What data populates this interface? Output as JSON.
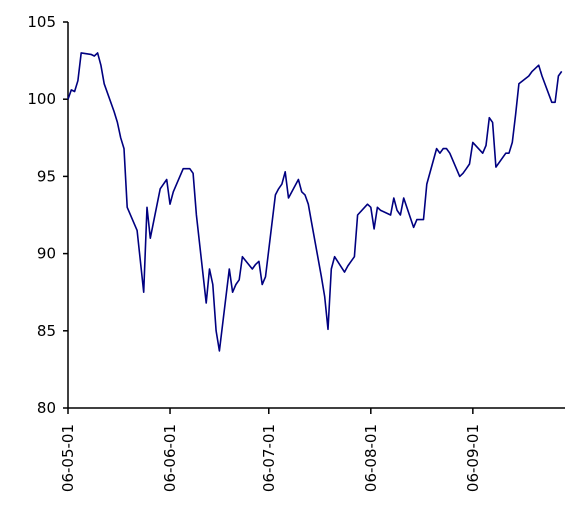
{
  "chart_data": {
    "type": "line",
    "title": "",
    "xlabel": "",
    "ylabel": "",
    "ylim": [
      80,
      105
    ],
    "y_ticks": [
      80,
      85,
      90,
      95,
      100,
      105
    ],
    "y_tick_labels": [
      "80",
      "85",
      "90",
      "95",
      "100",
      "105"
    ],
    "x_ticks": [
      "2006-05-01",
      "2006-06-01",
      "2006-07-01",
      "2006-08-01",
      "2006-09-01"
    ],
    "x_tick_labels": [
      "06-05-01",
      "06-06-01",
      "06-07-01",
      "06-08-01",
      "06-09-01"
    ],
    "xlim": [
      "2006-05-01",
      "2006-09-29"
    ],
    "line_color": "#000080",
    "grid": false,
    "legend": "none",
    "series": [
      {
        "values": [
          [
            "2006-05-01",
            100.0
          ],
          [
            "2006-05-02",
            100.6
          ],
          [
            "2006-05-03",
            100.5
          ],
          [
            "2006-05-04",
            101.2
          ],
          [
            "2006-05-05",
            103.0
          ],
          [
            "2006-05-08",
            102.9
          ],
          [
            "2006-05-09",
            102.8
          ],
          [
            "2006-05-10",
            103.0
          ],
          [
            "2006-05-11",
            102.2
          ],
          [
            "2006-05-12",
            101.0
          ],
          [
            "2006-05-15",
            99.2
          ],
          [
            "2006-05-16",
            98.5
          ],
          [
            "2006-05-17",
            97.5
          ],
          [
            "2006-05-18",
            96.8
          ],
          [
            "2006-05-19",
            93.0
          ],
          [
            "2006-05-22",
            91.5
          ],
          [
            "2006-05-23",
            89.5
          ],
          [
            "2006-05-24",
            87.5
          ],
          [
            "2006-05-25",
            93.0
          ],
          [
            "2006-05-26",
            91.0
          ],
          [
            "2006-05-29",
            94.2
          ],
          [
            "2006-05-30",
            94.5
          ],
          [
            "2006-05-31",
            94.8
          ],
          [
            "2006-06-01",
            93.2
          ],
          [
            "2006-06-02",
            94.0
          ],
          [
            "2006-06-05",
            95.5
          ],
          [
            "2006-06-06",
            95.5
          ],
          [
            "2006-06-07",
            95.5
          ],
          [
            "2006-06-08",
            95.2
          ],
          [
            "2006-06-09",
            92.5
          ],
          [
            "2006-06-12",
            86.8
          ],
          [
            "2006-06-13",
            89.0
          ],
          [
            "2006-06-14",
            88.0
          ],
          [
            "2006-06-15",
            85.0
          ],
          [
            "2006-06-16",
            83.7
          ],
          [
            "2006-06-19",
            89.0
          ],
          [
            "2006-06-20",
            87.5
          ],
          [
            "2006-06-21",
            88.0
          ],
          [
            "2006-06-22",
            88.3
          ],
          [
            "2006-06-23",
            89.8
          ],
          [
            "2006-06-26",
            89.0
          ],
          [
            "2006-06-27",
            89.3
          ],
          [
            "2006-06-28",
            89.5
          ],
          [
            "2006-06-29",
            88.0
          ],
          [
            "2006-06-30",
            88.5
          ],
          [
            "2006-07-03",
            93.8
          ],
          [
            "2006-07-04",
            94.2
          ],
          [
            "2006-07-05",
            94.5
          ],
          [
            "2006-07-06",
            95.3
          ],
          [
            "2006-07-07",
            93.6
          ],
          [
            "2006-07-10",
            94.8
          ],
          [
            "2006-07-11",
            94.0
          ],
          [
            "2006-07-12",
            93.8
          ],
          [
            "2006-07-13",
            93.2
          ],
          [
            "2006-07-14",
            92.0
          ],
          [
            "2006-07-17",
            88.5
          ],
          [
            "2006-07-18",
            87.2
          ],
          [
            "2006-07-19",
            85.1
          ],
          [
            "2006-07-20",
            89.0
          ],
          [
            "2006-07-21",
            89.8
          ],
          [
            "2006-07-24",
            88.8
          ],
          [
            "2006-07-25",
            89.2
          ],
          [
            "2006-07-26",
            89.5
          ],
          [
            "2006-07-27",
            89.8
          ],
          [
            "2006-07-28",
            92.5
          ],
          [
            "2006-07-31",
            93.2
          ],
          [
            "2006-08-01",
            93.0
          ],
          [
            "2006-08-02",
            91.6
          ],
          [
            "2006-08-03",
            93.0
          ],
          [
            "2006-08-04",
            92.8
          ],
          [
            "2006-08-07",
            92.5
          ],
          [
            "2006-08-08",
            93.6
          ],
          [
            "2006-08-09",
            92.8
          ],
          [
            "2006-08-10",
            92.5
          ],
          [
            "2006-08-11",
            93.6
          ],
          [
            "2006-08-14",
            91.7
          ],
          [
            "2006-08-15",
            92.2
          ],
          [
            "2006-08-16",
            92.2
          ],
          [
            "2006-08-17",
            92.2
          ],
          [
            "2006-08-18",
            94.5
          ],
          [
            "2006-08-21",
            96.8
          ],
          [
            "2006-08-22",
            96.5
          ],
          [
            "2006-08-23",
            96.8
          ],
          [
            "2006-08-24",
            96.8
          ],
          [
            "2006-08-25",
            96.5
          ],
          [
            "2006-08-28",
            95.0
          ],
          [
            "2006-08-29",
            95.2
          ],
          [
            "2006-08-30",
            95.5
          ],
          [
            "2006-08-31",
            95.8
          ],
          [
            "2006-09-01",
            97.2
          ],
          [
            "2006-09-04",
            96.5
          ],
          [
            "2006-09-05",
            97.0
          ],
          [
            "2006-09-06",
            98.8
          ],
          [
            "2006-09-07",
            98.5
          ],
          [
            "2006-09-08",
            95.6
          ],
          [
            "2006-09-11",
            96.5
          ],
          [
            "2006-09-12",
            96.5
          ],
          [
            "2006-09-13",
            97.2
          ],
          [
            "2006-09-14",
            99.0
          ],
          [
            "2006-09-15",
            101.0
          ],
          [
            "2006-09-18",
            101.5
          ],
          [
            "2006-09-19",
            101.8
          ],
          [
            "2006-09-20",
            102.0
          ],
          [
            "2006-09-21",
            102.2
          ],
          [
            "2006-09-22",
            101.5
          ],
          [
            "2006-09-25",
            99.8
          ],
          [
            "2006-09-26",
            99.8
          ],
          [
            "2006-09-27",
            101.5
          ],
          [
            "2006-09-28",
            101.8
          ]
        ]
      }
    ]
  }
}
